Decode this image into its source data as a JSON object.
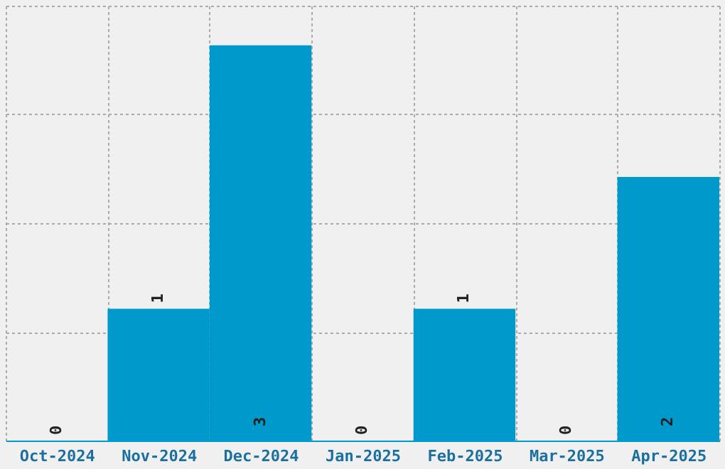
{
  "chart_data": {
    "type": "bar",
    "categories": [
      "Oct-2024",
      "Nov-2024",
      "Dec-2024",
      "Jan-2025",
      "Feb-2025",
      "Mar-2025",
      "Apr-2025"
    ],
    "values": [
      0,
      1,
      3,
      0,
      1,
      0,
      2
    ],
    "color": "#0099cc",
    "ylim": [
      0,
      3.3
    ],
    "yticks": [
      {
        "value": 0,
        "label": null
      },
      {
        "value": 0.825,
        "label": null
      },
      {
        "value": 1.65,
        "label": null
      },
      {
        "value": 2.475,
        "label": null
      },
      {
        "value": 3.3,
        "label": null
      }
    ],
    "grid": true,
    "data_labels": true,
    "tick_labels": "x"
  }
}
